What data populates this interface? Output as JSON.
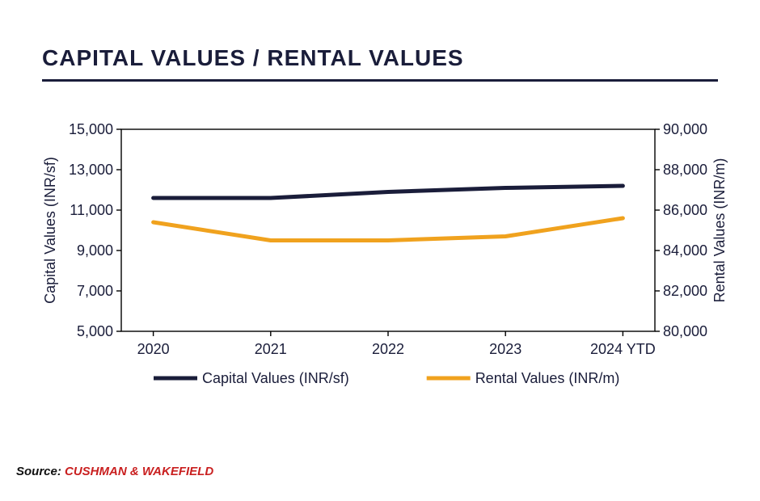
{
  "title": "CAPITAL VALUES / RENTAL VALUES",
  "title_color": "#1a1d3a",
  "title_fontsize": 28,
  "title_underline_color": "#1a1d3a",
  "source_label": "Source: ",
  "source_name": "CUSHMAN & WAKEFIELD",
  "source_label_color": "#111111",
  "source_name_color": "#c91f1f",
  "chart": {
    "type": "line-dual-axis",
    "background_color": "#ffffff",
    "plot_border_color": "#000000",
    "plot_border_width": 1.4,
    "categories": [
      "2020",
      "2021",
      "2022",
      "2023",
      "2024 YTD"
    ],
    "x_tick_fontsize": 18,
    "y_left": {
      "label": "Capital Values (INR/sf)",
      "label_fontsize": 18,
      "min": 5000,
      "max": 15000,
      "tick_step": 2000,
      "tick_labels": [
        "5,000",
        "7,000",
        "9,000",
        "11,000",
        "13,000",
        "15,000"
      ],
      "tick_fontsize": 18,
      "tick_color": "#1a1d3a"
    },
    "y_right": {
      "label": "Rental Values (INR/m)",
      "label_fontsize": 18,
      "min": 80000,
      "max": 90000,
      "tick_step": 2000,
      "tick_labels": [
        "80,000",
        "82,000",
        "84,000",
        "86,000",
        "88,000",
        "90,000"
      ],
      "tick_fontsize": 18,
      "tick_color": "#1a1d3a"
    },
    "series": [
      {
        "name": "Capital Values (INR/sf)",
        "axis": "left",
        "color": "#1a1d3a",
        "line_width": 5,
        "values": [
          11600,
          11600,
          11900,
          12100,
          12200
        ]
      },
      {
        "name": "Rental Values (INR/m)",
        "axis": "right",
        "color": "#f0a21e",
        "line_width": 5,
        "values": [
          85400,
          84500,
          84500,
          84700,
          85600
        ]
      }
    ],
    "legend": {
      "fontsize": 18,
      "swatch_width": 54,
      "swatch_height": 5
    },
    "grid_on": false,
    "tick_mark_length": 6
  }
}
